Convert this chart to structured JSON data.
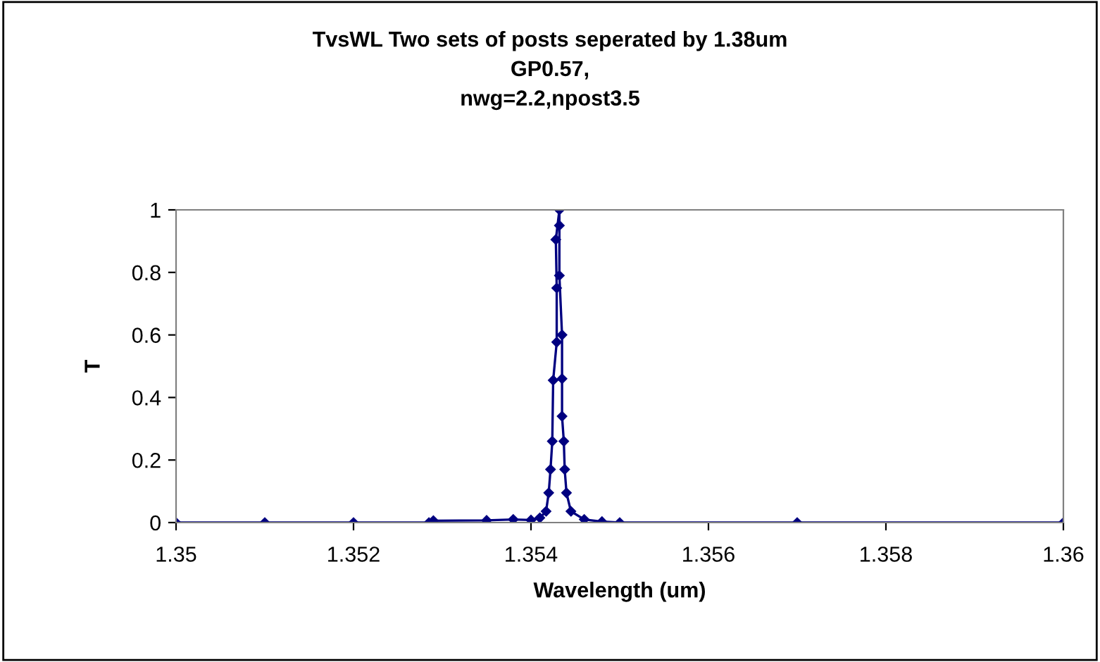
{
  "chart_data": {
    "type": "line",
    "title": "TvsWL Two sets of posts seperated by 1.38um\nGP0.57,\nnwg=2.2,npost3.5",
    "xlabel": "Wavelength (um)",
    "ylabel": "T",
    "x": [
      1.35,
      1.351,
      1.352,
      1.35285,
      1.3529,
      1.3535,
      1.3538,
      1.354,
      1.3541,
      1.35417,
      1.3542,
      1.35422,
      1.35424,
      1.35425,
      1.35429,
      1.35429,
      1.35428,
      1.35432,
      1.35432,
      1.35432,
      1.35435,
      1.35435,
      1.35435,
      1.35437,
      1.35438,
      1.3544,
      1.35445,
      1.3546,
      1.3548,
      1.355,
      1.357,
      1.36
    ],
    "series": [
      {
        "color": "#000080",
        "values": [
          0,
          0,
          0,
          0,
          0.006,
          0.007,
          0.01,
          0.008,
          0.015,
          0.036,
          0.095,
          0.17,
          0.26,
          0.455,
          0.577,
          0.75,
          0.905,
          1.0,
          0.95,
          0.79,
          0.6,
          0.46,
          0.34,
          0.26,
          0.17,
          0.095,
          0.036,
          0.01,
          0.003,
          0,
          0,
          0
        ]
      }
    ],
    "xlim": [
      1.35,
      1.36
    ],
    "xticks": [
      1.35,
      1.352,
      1.354,
      1.356,
      1.358,
      1.36
    ],
    "ylim": [
      0,
      1
    ],
    "yticks": [
      0,
      0.2,
      0.4,
      0.6,
      0.8,
      1
    ],
    "grid": false,
    "legend": false,
    "marker": "diamond",
    "line_style": "solid"
  }
}
